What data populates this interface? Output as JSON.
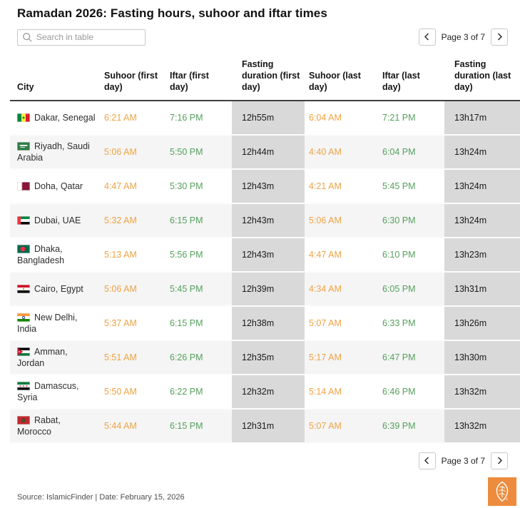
{
  "page": {
    "title": "Ramadan 2026: Fasting hours, suhoor and iftar times",
    "search": {
      "placeholder": "Search in table",
      "value": ""
    },
    "pagination": {
      "label": "Page 3 of 7",
      "prev_icon": "chevron-left",
      "next_icon": "chevron-right"
    },
    "footer": {
      "source": "Source: IslamicFinder | Date: February 15, 2026",
      "logo": "al-jazeera-logo"
    }
  },
  "colors": {
    "suhoor_time": "#f0a343",
    "iftar_time": "#55a05c",
    "duration_cell_bg": "#d9d9d9",
    "alt_row_bg": "#f5f5f5",
    "logo_orange": "#ed8c3e"
  },
  "table": {
    "columns": [
      "City",
      "Suhoor (first day)",
      "Iftar (first day)",
      "Fasting duration (first day)",
      "Suhoor (last day)",
      "Iftar (last day)",
      "Fasting duration (last day)"
    ],
    "rows": [
      {
        "flag": "senegal",
        "city": "Dakar, Senegal",
        "suhoor_first": "6:21 AM",
        "iftar_first": "7:16 PM",
        "duration_first": "12h55m",
        "suhoor_last": "6:04 AM",
        "iftar_last": "7:21 PM",
        "duration_last": "13h17m"
      },
      {
        "flag": "saudi",
        "city": "Riyadh, Saudi Arabia",
        "suhoor_first": "5:06 AM",
        "iftar_first": "5:50 PM",
        "duration_first": "12h44m",
        "suhoor_last": "4:40 AM",
        "iftar_last": "6:04 PM",
        "duration_last": "13h24m"
      },
      {
        "flag": "qatar",
        "city": "Doha, Qatar",
        "suhoor_first": "4:47 AM",
        "iftar_first": "5:30 PM",
        "duration_first": "12h43m",
        "suhoor_last": "4:21 AM",
        "iftar_last": "5:45 PM",
        "duration_last": "13h24m"
      },
      {
        "flag": "uae",
        "city": "Dubai, UAE",
        "suhoor_first": "5:32 AM",
        "iftar_first": "6:15 PM",
        "duration_first": "12h43m",
        "suhoor_last": "5:06 AM",
        "iftar_last": "6:30 PM",
        "duration_last": "13h24m"
      },
      {
        "flag": "bangladesh",
        "city": "Dhaka, Bangladesh",
        "suhoor_first": "5:13 AM",
        "iftar_first": "5:56 PM",
        "duration_first": "12h43m",
        "suhoor_last": "4:47 AM",
        "iftar_last": "6:10 PM",
        "duration_last": "13h23m"
      },
      {
        "flag": "egypt",
        "city": "Cairo, Egypt",
        "suhoor_first": "5:06 AM",
        "iftar_first": "5:45 PM",
        "duration_first": "12h39m",
        "suhoor_last": "4:34 AM",
        "iftar_last": "6:05 PM",
        "duration_last": "13h31m"
      },
      {
        "flag": "india",
        "city": "New Delhi, India",
        "suhoor_first": "5:37 AM",
        "iftar_first": "6:15 PM",
        "duration_first": "12h38m",
        "suhoor_last": "5:07 AM",
        "iftar_last": "6:33 PM",
        "duration_last": "13h26m"
      },
      {
        "flag": "jordan",
        "city": "Amman, Jordan",
        "suhoor_first": "5:51 AM",
        "iftar_first": "6:26 PM",
        "duration_first": "12h35m",
        "suhoor_last": "5:17 AM",
        "iftar_last": "6:47 PM",
        "duration_last": "13h30m"
      },
      {
        "flag": "syria",
        "city": "Damascus, Syria",
        "suhoor_first": "5:50 AM",
        "iftar_first": "6:22 PM",
        "duration_first": "12h32m",
        "suhoor_last": "5:14 AM",
        "iftar_last": "6:46 PM",
        "duration_last": "13h32m"
      },
      {
        "flag": "morocco",
        "city": "Rabat, Morocco",
        "suhoor_first": "5:44 AM",
        "iftar_first": "6:15 PM",
        "duration_first": "12h31m",
        "suhoor_last": "5:07 AM",
        "iftar_last": "6:39 PM",
        "duration_last": "13h32m"
      }
    ]
  }
}
